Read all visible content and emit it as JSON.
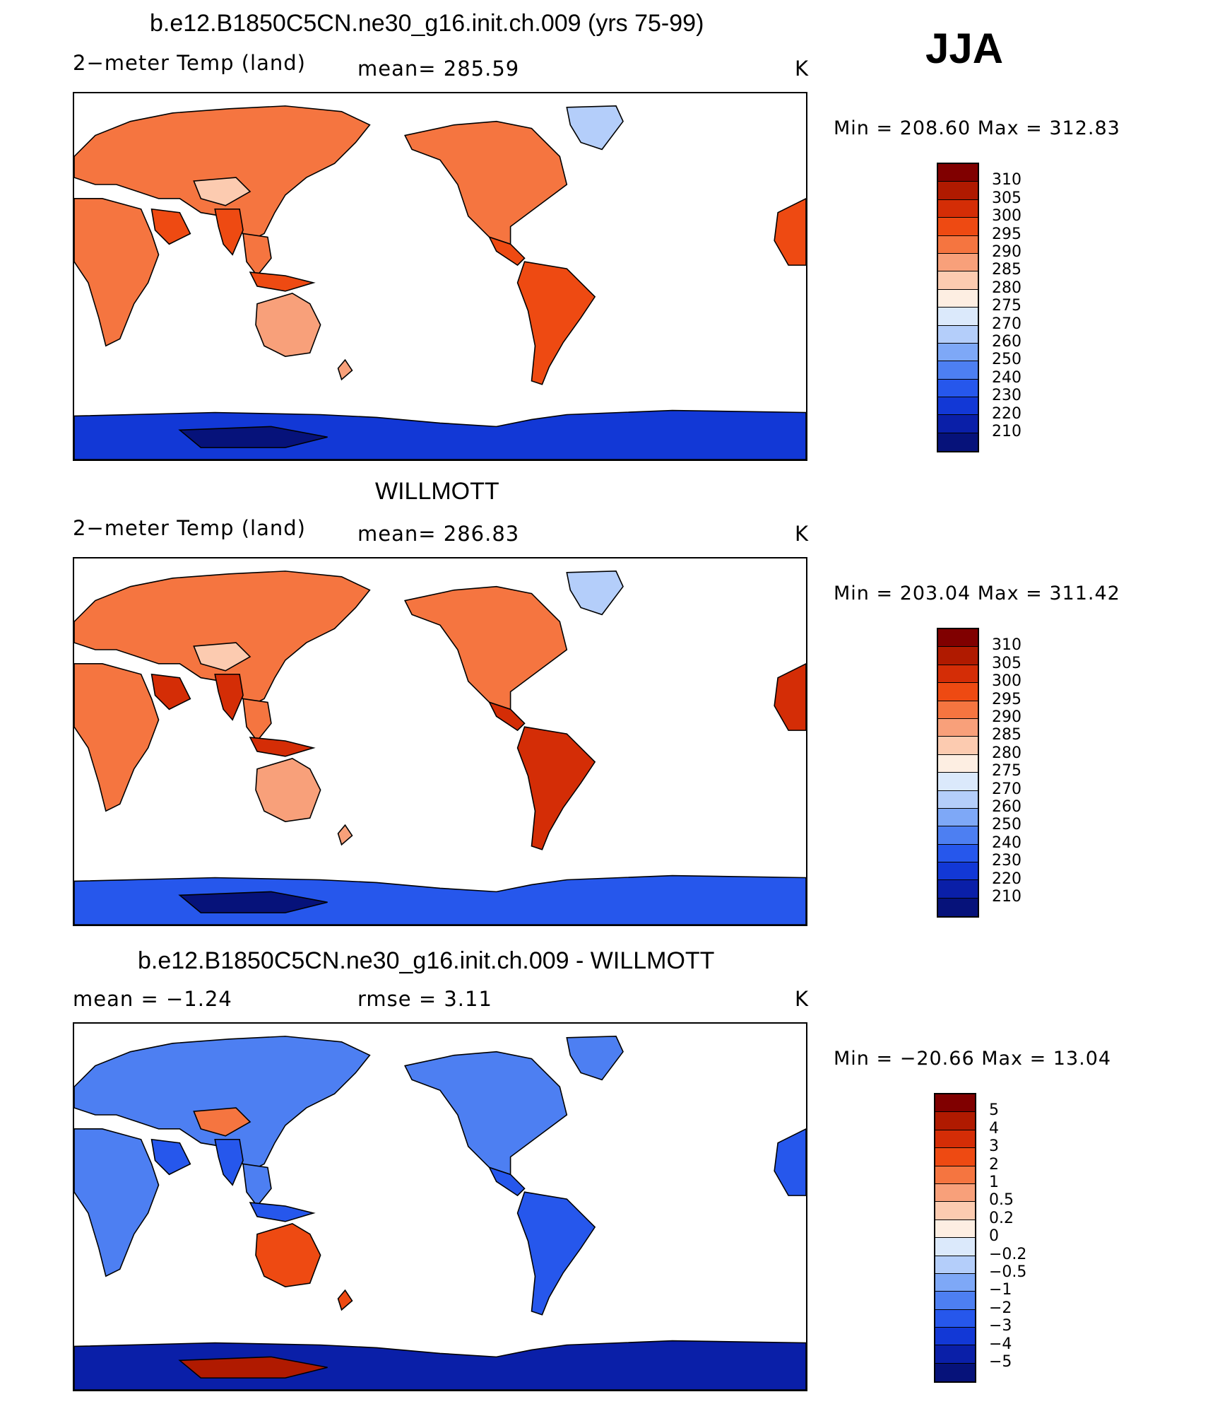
{
  "season": "JJA",
  "panels": [
    {
      "id": "model",
      "title": "b.e12.B1850C5CN.ne30_g16.init.ch.009 (yrs 75-99)",
      "left_label": "2−meter Temp (land)",
      "mid_label": "mean= 285.59",
      "units": "K",
      "minmax": "Min = 208.60 Max = 312.83",
      "scale": "abs"
    },
    {
      "id": "obs",
      "title": "WILLMOTT",
      "left_label": "2−meter Temp (land)",
      "mid_label": "mean= 286.83",
      "units": "K",
      "minmax": "Min = 203.04 Max = 311.42",
      "scale": "abs"
    },
    {
      "id": "diff",
      "title": "b.e12.B1850C5CN.ne30_g16.init.ch.009 - WILLMOTT",
      "left_label": "mean =  −1.24",
      "mid_label": "rmse =   3.11",
      "units": "K",
      "minmax": "Min = −20.66 Max =  13.04",
      "scale": "diff"
    }
  ],
  "colorbars": {
    "abs": {
      "colors": [
        "#800000",
        "#b01a00",
        "#d42d06",
        "#ee4a12",
        "#f57540",
        "#f8a07a",
        "#fccbb0",
        "#fdeee2",
        "#dbe9fb",
        "#b4cefa",
        "#7ea8f7",
        "#4d7ff2",
        "#2657ec",
        "#1238d6",
        "#0a1fa8",
        "#06127a"
      ],
      "labels": [
        "310",
        "305",
        "300",
        "295",
        "290",
        "285",
        "280",
        "275",
        "270",
        "260",
        "250",
        "240",
        "230",
        "220",
        "210"
      ]
    },
    "diff": {
      "colors": [
        "#800000",
        "#b01a00",
        "#d42d06",
        "#ee4a12",
        "#f57540",
        "#f8a07a",
        "#fccbb0",
        "#fdeee2",
        "#dbe9fb",
        "#b4cefa",
        "#7ea8f7",
        "#4d7ff2",
        "#2657ec",
        "#1238d6",
        "#0a1fa8",
        "#06127a"
      ],
      "labels": [
        "5",
        "4",
        "3",
        "2",
        "1",
        "0.5",
        "0.2",
        "0",
        "−0.2",
        "−0.5",
        "−1",
        "−2",
        "−3",
        "−4",
        "−5"
      ]
    }
  },
  "land_fill": {
    "model": {
      "hot": "#ee4a12",
      "warm": "#f57540",
      "mild": "#f8a07a",
      "cool": "#fccbb0",
      "greenland": "#b4cefa",
      "antarctica": "#1238d6",
      "antarctica_deep": "#06127a"
    },
    "obs": {
      "hot": "#d42d06",
      "warm": "#f57540",
      "mild": "#f8a07a",
      "cool": "#fccbb0",
      "greenland": "#b4cefa",
      "antarctica": "#2657ec",
      "antarctica_deep": "#06127a"
    },
    "diff": {
      "hot": "#2657ec",
      "warm": "#4d7ff2",
      "mild": "#ee4a12",
      "cool": "#f57540",
      "greenland": "#4d7ff2",
      "antarctica": "#0a1fa8",
      "antarctica_deep": "#b01a00"
    }
  }
}
